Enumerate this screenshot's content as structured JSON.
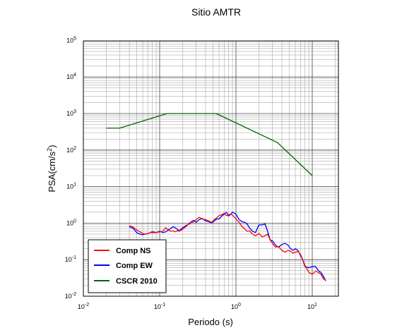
{
  "chart_data": {
    "type": "line",
    "title": "Sitio AMTR",
    "xlabel": "Periodo (s)",
    "ylabel_base": "PSA(cm/s",
    "ylabel_exp": "2",
    "ylabel_close": ")",
    "xscale": "log",
    "yscale": "log",
    "xlim": [
      0.01,
      20
    ],
    "ylim": [
      0.01,
      100000
    ],
    "grid": true,
    "legend_position": "bottom-left",
    "x_ticks": [
      {
        "base": "10",
        "exp": "-2",
        "value": 0.01
      },
      {
        "base": "10",
        "exp": "-1",
        "value": 0.1
      },
      {
        "base": "10",
        "exp": "0",
        "value": 1
      },
      {
        "base": "10",
        "exp": "1",
        "value": 10
      }
    ],
    "y_ticks": [
      {
        "base": "10",
        "exp": "-2",
        "value": 0.01
      },
      {
        "base": "10",
        "exp": "-1",
        "value": 0.1
      },
      {
        "base": "10",
        "exp": "0",
        "value": 1
      },
      {
        "base": "10",
        "exp": "1",
        "value": 10
      },
      {
        "base": "10",
        "exp": "2",
        "value": 100
      },
      {
        "base": "10",
        "exp": "3",
        "value": 1000
      },
      {
        "base": "10",
        "exp": "4",
        "value": 10000
      },
      {
        "base": "10",
        "exp": "5",
        "value": 100000
      }
    ],
    "series": [
      {
        "name": "Comp NS",
        "color": "#ff0000",
        "x": [
          0.04,
          0.045,
          0.05,
          0.055,
          0.06,
          0.065,
          0.07,
          0.075,
          0.08,
          0.09,
          0.1,
          0.11,
          0.12,
          0.13,
          0.14,
          0.15,
          0.16,
          0.17,
          0.18,
          0.2,
          0.22,
          0.24,
          0.26,
          0.28,
          0.3,
          0.33,
          0.36,
          0.4,
          0.44,
          0.48,
          0.52,
          0.56,
          0.6,
          0.65,
          0.7,
          0.75,
          0.8,
          0.85,
          0.9,
          1.0,
          1.1,
          1.2,
          1.3,
          1.4,
          1.5,
          1.65,
          1.8,
          2.0,
          2.2,
          2.4,
          2.6,
          2.8,
          3.0,
          3.3,
          3.6,
          4.0,
          4.4,
          4.8,
          5.2,
          5.6,
          6.0,
          6.5,
          7.0,
          7.5,
          8.0,
          9.0,
          10.0,
          11.0,
          12.0,
          13.0,
          14.0,
          15.0
        ],
        "y": [
          0.85,
          0.78,
          0.65,
          0.58,
          0.52,
          0.5,
          0.52,
          0.55,
          0.55,
          0.55,
          0.58,
          0.6,
          0.75,
          0.65,
          0.6,
          0.62,
          0.58,
          0.62,
          0.6,
          0.68,
          0.8,
          0.95,
          1.0,
          1.1,
          1.25,
          1.45,
          1.3,
          1.25,
          1.15,
          1.05,
          1.25,
          1.4,
          1.6,
          1.7,
          1.85,
          1.6,
          1.7,
          1.75,
          1.65,
          1.3,
          1.05,
          0.8,
          0.7,
          0.6,
          0.62,
          0.5,
          0.45,
          0.52,
          0.42,
          0.45,
          0.5,
          0.35,
          0.28,
          0.22,
          0.23,
          0.18,
          0.16,
          0.18,
          0.17,
          0.15,
          0.16,
          0.17,
          0.14,
          0.1,
          0.07,
          0.045,
          0.04,
          0.048,
          0.045,
          0.04,
          0.03,
          0.027
        ]
      },
      {
        "name": "Comp EW",
        "color": "#0000ff",
        "x": [
          0.04,
          0.045,
          0.05,
          0.055,
          0.06,
          0.065,
          0.07,
          0.075,
          0.08,
          0.09,
          0.1,
          0.11,
          0.12,
          0.13,
          0.14,
          0.15,
          0.16,
          0.17,
          0.18,
          0.2,
          0.22,
          0.24,
          0.26,
          0.28,
          0.3,
          0.33,
          0.36,
          0.4,
          0.44,
          0.48,
          0.52,
          0.56,
          0.6,
          0.65,
          0.7,
          0.75,
          0.8,
          0.85,
          0.9,
          1.0,
          1.1,
          1.2,
          1.3,
          1.4,
          1.5,
          1.65,
          1.8,
          2.0,
          2.2,
          2.4,
          2.6,
          2.8,
          3.0,
          3.3,
          3.6,
          4.0,
          4.4,
          4.8,
          5.2,
          5.6,
          6.0,
          6.5,
          7.0,
          7.5,
          8.0,
          9.0,
          10.0,
          11.0,
          12.0,
          13.0,
          14.0,
          15.0
        ],
        "y": [
          0.8,
          0.72,
          0.55,
          0.5,
          0.48,
          0.5,
          0.52,
          0.55,
          0.58,
          0.55,
          0.6,
          0.55,
          0.58,
          0.65,
          0.72,
          0.8,
          0.75,
          0.68,
          0.62,
          0.75,
          0.85,
          0.95,
          1.1,
          1.2,
          1.05,
          1.25,
          1.35,
          1.15,
          1.1,
          1.0,
          1.15,
          1.3,
          1.3,
          1.55,
          1.75,
          2.0,
          1.55,
          1.75,
          2.0,
          1.75,
          1.25,
          1.1,
          1.05,
          0.95,
          0.75,
          0.6,
          0.55,
          0.9,
          0.9,
          0.95,
          0.6,
          0.35,
          0.33,
          0.25,
          0.22,
          0.26,
          0.28,
          0.25,
          0.2,
          0.18,
          0.2,
          0.18,
          0.13,
          0.1,
          0.065,
          0.06,
          0.065,
          0.065,
          0.05,
          0.045,
          0.035,
          0.026
        ]
      },
      {
        "name": "CSCR 2010",
        "color": "#006400",
        "x": [
          0.02,
          0.03,
          0.125,
          0.55,
          3.5,
          10
        ],
        "y": [
          400,
          400,
          1000,
          1000,
          160,
          20
        ]
      }
    ]
  }
}
